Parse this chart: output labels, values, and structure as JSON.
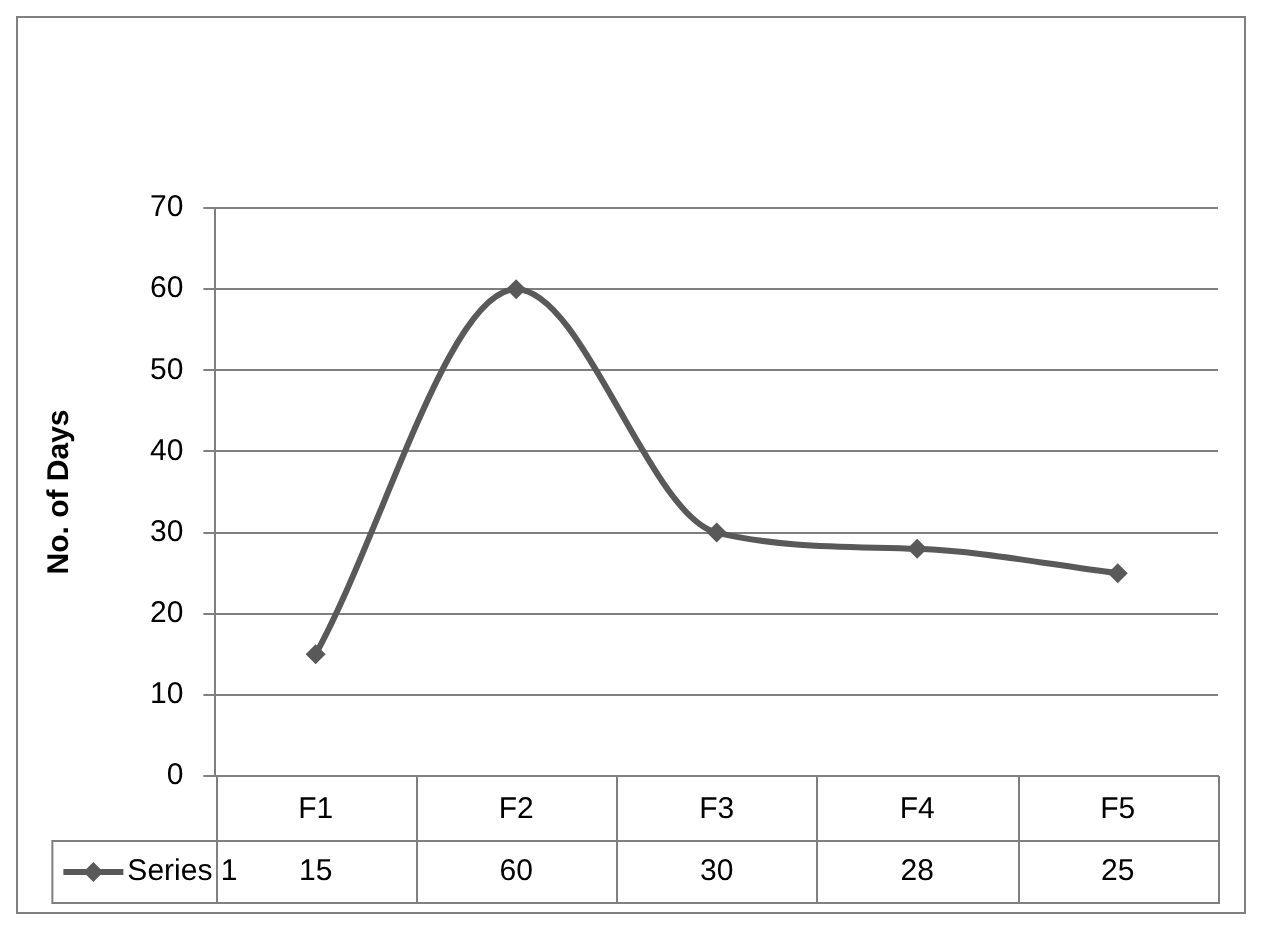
{
  "chart_data": {
    "type": "line",
    "ylabel": "No. of Days",
    "categories": [
      "F1",
      "F2",
      "F3",
      "F4",
      "F5"
    ],
    "series": [
      {
        "name": "Series 1",
        "color": "#595959",
        "values": [
          15,
          60,
          30,
          28,
          25
        ]
      }
    ],
    "ylim": [
      0,
      70
    ],
    "yticks": [
      0,
      10,
      20,
      30,
      40,
      50,
      60,
      70
    ],
    "grid": "y",
    "marker": "diamond",
    "line_style": "solid",
    "legend": "bottom",
    "data_labels": true
  }
}
